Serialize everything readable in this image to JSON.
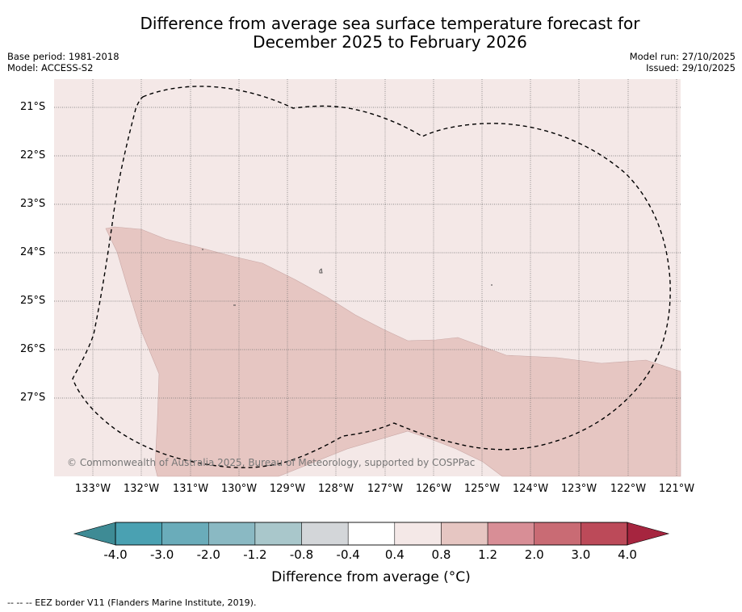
{
  "header": {
    "title_line1": "Difference from average sea surface temperature forecast for",
    "title_line2": "December 2025 to February 2026",
    "base_period": "Base period: 1981-2018",
    "model": "Model: ACCESS-S2",
    "model_run": "Model run: 27/10/2025",
    "issued": "Issued: 29/10/2025"
  },
  "map": {
    "lat_labels": [
      "21°S",
      "22°S",
      "23°S",
      "24°S",
      "25°S",
      "26°S",
      "27°S"
    ],
    "lon_labels": [
      "133°W",
      "132°W",
      "131°W",
      "130°W",
      "129°W",
      "128°W",
      "127°W",
      "126°W",
      "125°W",
      "124°W",
      "123°W",
      "122°W",
      "121°W"
    ],
    "copyright": "© Commonwealth of Australia 2025, Bureau of Meteorology, supported by COSPPac",
    "background_color": "#f4e8e7",
    "anomaly_color": "#e6c6c2"
  },
  "colorbar": {
    "labels": [
      "-4.0",
      "-3.0",
      "-2.0",
      "-1.2",
      "-0.8",
      "-0.4",
      "0.4",
      "0.8",
      "1.2",
      "2.0",
      "3.0",
      "4.0"
    ],
    "colors": [
      "#4aa1b2",
      "#6aacba",
      "#8ab9c3",
      "#a9c7cb",
      "#d3d6d9",
      "#ffffff",
      "#f4e8e7",
      "#e6c6c2",
      "#d88e96",
      "#c96b74",
      "#bc4a59"
    ],
    "low_extend_color": "#3e8b95",
    "high_extend_color": "#a6253f",
    "title": "Difference from average (°C)"
  },
  "footnote": "-- -- -- EEZ border V11 (Flanders Marine Institute, 2019)."
}
